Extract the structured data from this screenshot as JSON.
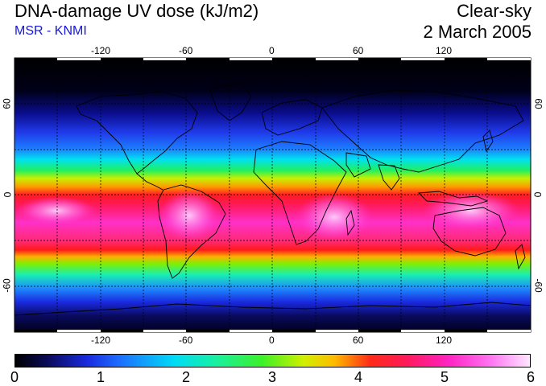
{
  "header": {
    "title": "DNA-damage UV dose (kJ/m2)",
    "source": "MSR - KNMI",
    "condition": "Clear-sky",
    "date": "2 March 2005"
  },
  "map": {
    "projection": "equirectangular",
    "lon_labels": [
      "-120",
      "-60",
      "0",
      "60",
      "120"
    ],
    "lat_labels": [
      "60",
      "0",
      "-60"
    ],
    "colors": {
      "high_band": "#ff1a4a",
      "peak": "#ff7cf0",
      "low": "#000010",
      "land_outline": "#000000"
    }
  },
  "colorbar": {
    "min": 0,
    "max": 6,
    "tick_labels": [
      "0",
      "1",
      "2",
      "3",
      "4",
      "5",
      "6"
    ]
  }
}
